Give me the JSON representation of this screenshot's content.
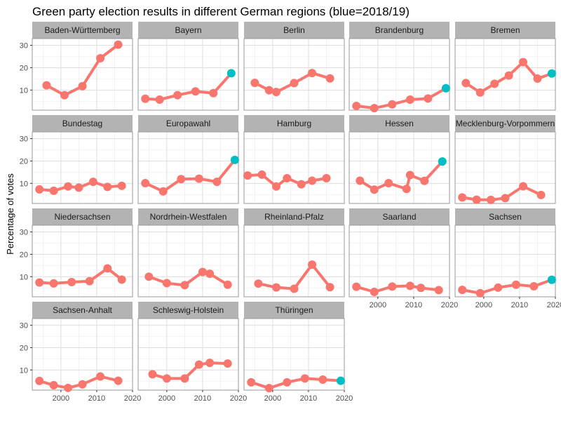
{
  "chart_data": {
    "type": "line",
    "title": "Green party election results in different German regions (blue=2018/19)",
    "xlabel": "",
    "ylabel": "Percentage of votes",
    "xlim": [
      1992,
      2020
    ],
    "ylim": [
      1,
      33
    ],
    "x_ticks": [
      2000,
      2010,
      2020
    ],
    "y_ticks": [
      10,
      20,
      30
    ],
    "grid": true,
    "colors": {
      "line": "#F8766D",
      "highlight": "#00BFC4",
      "strip": "#B3B3B3",
      "grid": "#DEDEDE",
      "panel_border": "#999999"
    },
    "panels": [
      {
        "name": "Baden-Württemberg",
        "points": [
          [
            1996,
            12.1
          ],
          [
            2001,
            7.7
          ],
          [
            2006,
            11.7
          ],
          [
            2011,
            24.2
          ],
          [
            2016,
            30.3
          ]
        ]
      },
      {
        "name": "Bayern",
        "points": [
          [
            1994,
            6.1
          ],
          [
            1998,
            5.7
          ],
          [
            2003,
            7.7
          ],
          [
            2008,
            9.4
          ],
          [
            2013,
            8.6
          ],
          [
            2018,
            17.5,
            "highlight"
          ]
        ]
      },
      {
        "name": "Berlin",
        "points": [
          [
            1995,
            13.2
          ],
          [
            1999,
            9.9
          ],
          [
            2001,
            9.1
          ],
          [
            2006,
            13.1
          ],
          [
            2011,
            17.6
          ],
          [
            2016,
            15.2
          ]
        ]
      },
      {
        "name": "Brandenburg",
        "points": [
          [
            1994,
            2.9
          ],
          [
            1999,
            1.9
          ],
          [
            2004,
            3.6
          ],
          [
            2009,
            5.7
          ],
          [
            2014,
            6.2
          ],
          [
            2019,
            10.8,
            "highlight"
          ]
        ]
      },
      {
        "name": "Bremen",
        "points": [
          [
            1995,
            13.1
          ],
          [
            1999,
            8.9
          ],
          [
            2003,
            12.8
          ],
          [
            2007,
            16.5
          ],
          [
            2011,
            22.5
          ],
          [
            2015,
            15.1
          ],
          [
            2019,
            17.4,
            "highlight"
          ]
        ]
      },
      {
        "name": "Bundestag",
        "points": [
          [
            1994,
            7.3
          ],
          [
            1998,
            6.7
          ],
          [
            2002,
            8.6
          ],
          [
            2005,
            8.1
          ],
          [
            2009,
            10.7
          ],
          [
            2013,
            8.4
          ],
          [
            2017,
            8.9
          ]
        ]
      },
      {
        "name": "Europawahl",
        "points": [
          [
            1994,
            10.1
          ],
          [
            1999,
            6.4
          ],
          [
            2004,
            11.9
          ],
          [
            2009,
            12.1
          ],
          [
            2014,
            10.7
          ],
          [
            2019,
            20.5,
            "highlight"
          ]
        ]
      },
      {
        "name": "Hamburg",
        "points": [
          [
            1993,
            13.5
          ],
          [
            1997,
            13.9
          ],
          [
            2001,
            8.6
          ],
          [
            2004,
            12.3
          ],
          [
            2008,
            9.6
          ],
          [
            2011,
            11.2
          ],
          [
            2015,
            12.3
          ]
        ]
      },
      {
        "name": "Hessen",
        "points": [
          [
            1995,
            11.2
          ],
          [
            1999,
            7.2
          ],
          [
            2003,
            10.1
          ],
          [
            2008,
            7.5
          ],
          [
            2009,
            13.7
          ],
          [
            2013,
            11.1
          ],
          [
            2018,
            19.8,
            "highlight"
          ]
        ]
      },
      {
        "name": "Mecklenburg-Vorpommern",
        "points": [
          [
            1994,
            3.7
          ],
          [
            1998,
            2.7
          ],
          [
            2002,
            2.6
          ],
          [
            2006,
            3.4
          ],
          [
            2011,
            8.7
          ],
          [
            2016,
            4.8
          ]
        ]
      },
      {
        "name": "Niedersachsen",
        "points": [
          [
            1994,
            7.4
          ],
          [
            1998,
            7.0
          ],
          [
            2003,
            7.6
          ],
          [
            2008,
            8.0
          ],
          [
            2013,
            13.7
          ],
          [
            2017,
            8.7
          ]
        ]
      },
      {
        "name": "Nordrhein-Westfalen",
        "points": [
          [
            1995,
            10.0
          ],
          [
            2000,
            7.1
          ],
          [
            2005,
            6.2
          ],
          [
            2010,
            12.1
          ],
          [
            2012,
            11.3
          ],
          [
            2017,
            6.4
          ]
        ]
      },
      {
        "name": "Rheinland-Pfalz",
        "points": [
          [
            1996,
            6.9
          ],
          [
            2001,
            5.2
          ],
          [
            2006,
            4.6
          ],
          [
            2011,
            15.4
          ],
          [
            2016,
            5.3
          ]
        ]
      },
      {
        "name": "Saarland",
        "points": [
          [
            1994,
            5.5
          ],
          [
            1999,
            3.2
          ],
          [
            2004,
            5.6
          ],
          [
            2009,
            5.9
          ],
          [
            2012,
            5.0
          ],
          [
            2017,
            4.0
          ]
        ]
      },
      {
        "name": "Sachsen",
        "points": [
          [
            1994,
            4.1
          ],
          [
            1999,
            2.6
          ],
          [
            2004,
            5.1
          ],
          [
            2009,
            6.4
          ],
          [
            2014,
            5.7
          ],
          [
            2019,
            8.6,
            "highlight"
          ]
        ]
      },
      {
        "name": "Sachsen-Anhalt",
        "points": [
          [
            1994,
            5.1
          ],
          [
            1998,
            3.2
          ],
          [
            2002,
            2.0
          ],
          [
            2006,
            3.6
          ],
          [
            2011,
            7.1
          ],
          [
            2016,
            5.2
          ]
        ]
      },
      {
        "name": "Schleswig-Holstein",
        "points": [
          [
            1996,
            8.1
          ],
          [
            2000,
            6.2
          ],
          [
            2005,
            6.2
          ],
          [
            2009,
            12.4
          ],
          [
            2012,
            13.2
          ],
          [
            2017,
            12.9
          ]
        ]
      },
      {
        "name": "Thüringen",
        "points": [
          [
            1994,
            4.5
          ],
          [
            1999,
            1.9
          ],
          [
            2004,
            4.5
          ],
          [
            2009,
            6.2
          ],
          [
            2014,
            5.7
          ],
          [
            2019,
            5.2,
            "highlight"
          ]
        ]
      }
    ]
  }
}
